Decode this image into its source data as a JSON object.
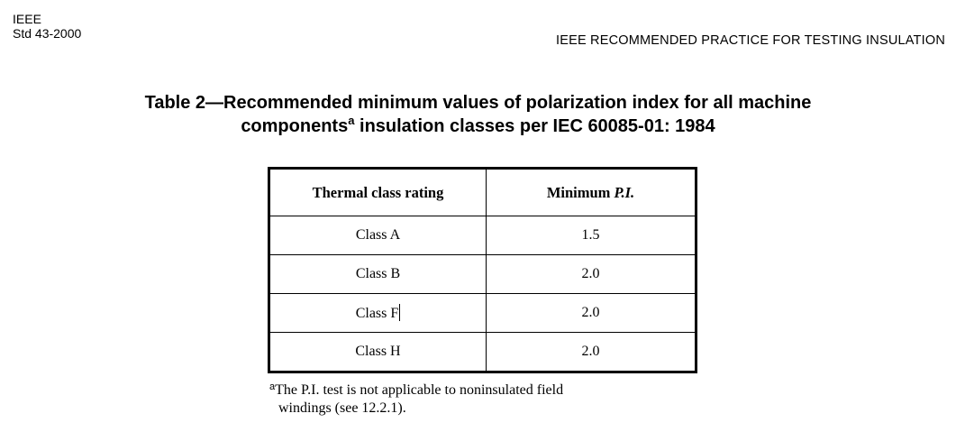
{
  "header": {
    "org": "IEEE",
    "std": "Std 43-2000",
    "running_title": "IEEE RECOMMENDED PRACTICE FOR TESTING INSULATION"
  },
  "caption": {
    "line1": "Table 2—Recommended minimum values of polarization index for all machine",
    "line2_part1": "components",
    "footnote_ref": "a",
    "line2_part2": " insulation classes per IEC 60085-01: 1984"
  },
  "table": {
    "headers": {
      "col1": "Thermal class rating",
      "col2_prefix": "Minimum ",
      "col2_em": "P.I."
    },
    "rows": [
      {
        "thermal_class": "Class A",
        "min_pi": "1.5"
      },
      {
        "thermal_class": "Class B",
        "min_pi": "2.0"
      },
      {
        "thermal_class": "Class F",
        "min_pi": "2.0"
      },
      {
        "thermal_class": "Class H",
        "min_pi": "2.0"
      }
    ]
  },
  "footnote": {
    "mark": "a",
    "line1": "The P.I. test is not applicable to noninsulated field",
    "line2": "windings (see 12.2.1)."
  }
}
